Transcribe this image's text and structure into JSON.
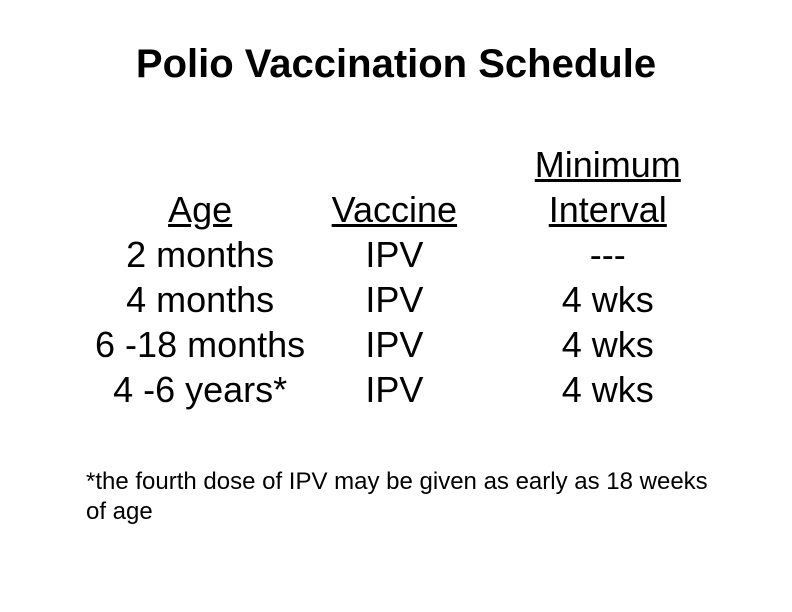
{
  "title": "Polio Vaccination Schedule",
  "table": {
    "columns": {
      "age": "Age",
      "vaccine": "Vaccine",
      "interval_line1": "Minimum",
      "interval_line2": "Interval"
    },
    "rows": [
      {
        "age": "2 months",
        "vaccine": "IPV",
        "interval": "---"
      },
      {
        "age": "4 months",
        "vaccine": "IPV",
        "interval": "4 wks"
      },
      {
        "age": "6 -18 months",
        "vaccine": "IPV",
        "interval": "4 wks"
      },
      {
        "age": "4 -6 years*",
        "vaccine": "IPV",
        "interval": "4 wks"
      }
    ]
  },
  "footnote": "*the fourth dose of IPV may be given as early  as 18 weeks of age",
  "style": {
    "background_color": "#ffffff",
    "text_color": "#000000",
    "title_fontsize": 40,
    "body_fontsize": 36,
    "footnote_fontsize": 24,
    "font_family": "Arial"
  }
}
